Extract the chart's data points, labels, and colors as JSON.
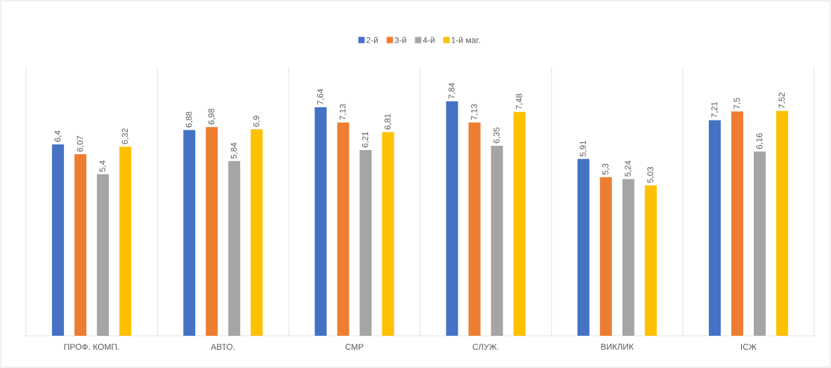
{
  "chart_data": {
    "type": "bar",
    "categories": [
      "ПРОФ. КОМП.",
      "АВТО.",
      "СМР",
      "СЛУЖ.",
      "ВИКЛИК",
      "ІСЖ"
    ],
    "series": [
      {
        "name": "2-й",
        "color": "#4472c4",
        "values": [
          6.4,
          6.88,
          7.64,
          7.84,
          5.91,
          7.21
        ],
        "value_labels": [
          "6,4",
          "6,88",
          "7,64",
          "7,84",
          "5,91",
          "7,21"
        ]
      },
      {
        "name": "3-й",
        "color": "#ed7d31",
        "values": [
          6.07,
          6.98,
          7.13,
          7.13,
          5.3,
          7.5
        ],
        "value_labels": [
          "6,07",
          "6,98",
          "7,13",
          "7,13",
          "5,3",
          "7,5"
        ]
      },
      {
        "name": "4-й",
        "color": "#a5a5a5",
        "values": [
          5.4,
          5.84,
          6.21,
          6.35,
          5.24,
          6.16
        ],
        "value_labels": [
          "5,4",
          "5,84",
          "6,21",
          "6,35",
          "5,24",
          "6,16"
        ]
      },
      {
        "name": "1-й маг.",
        "color": "#ffc000",
        "values": [
          6.32,
          6.9,
          6.81,
          7.48,
          5.03,
          7.52
        ],
        "value_labels": [
          "6,32",
          "6,9",
          "6,81",
          "7,48",
          "5,03",
          "7,52"
        ]
      }
    ],
    "ylim": [
      0,
      9
    ],
    "grid": "x",
    "legend": "top"
  }
}
